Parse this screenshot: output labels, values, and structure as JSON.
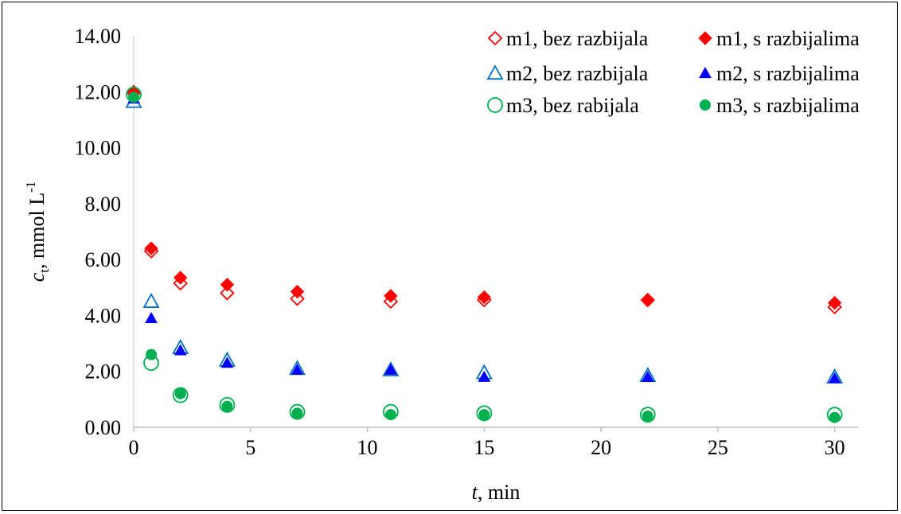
{
  "chart_data": {
    "type": "scatter",
    "title": "",
    "xlabel": {
      "italic": "t",
      "rest": ", min"
    },
    "ylabel": {
      "italic": "c",
      "sub": "t",
      "rest": ", mmol L",
      "sup": "-1"
    },
    "xlim": [
      0,
      31
    ],
    "ylim": [
      0,
      14
    ],
    "xticks": [
      "0",
      "5",
      "10",
      "15",
      "20",
      "25",
      "30"
    ],
    "yticks": [
      "0.00",
      "2.00",
      "4.00",
      "6.00",
      "8.00",
      "10.00",
      "12.00",
      "14.00"
    ],
    "grid": false,
    "legend_position": "top-right",
    "series": [
      {
        "name": "m1, bez razbijala",
        "marker": "diamond-open",
        "color": "#ff0000",
        "x": [
          0,
          0.75,
          2,
          4,
          7,
          11,
          15,
          22,
          30
        ],
        "y": [
          11.95,
          6.3,
          5.15,
          4.8,
          4.6,
          4.5,
          4.55,
          4.55,
          4.3
        ]
      },
      {
        "name": "m1, s razbijalima",
        "marker": "diamond-filled",
        "color": "#ff0000",
        "x": [
          0,
          0.75,
          2,
          4,
          7,
          11,
          15,
          22,
          30
        ],
        "y": [
          12.0,
          6.4,
          5.35,
          5.1,
          4.85,
          4.7,
          4.65,
          4.55,
          4.45
        ]
      },
      {
        "name": "m2, bez razbijala",
        "marker": "triangle-open",
        "color": "#0070c0",
        "x": [
          0,
          0.75,
          2,
          4,
          7,
          11,
          15,
          22,
          30
        ],
        "y": [
          11.65,
          4.5,
          2.85,
          2.4,
          2.1,
          2.05,
          1.95,
          1.85,
          1.8
        ]
      },
      {
        "name": "m2, s razbijalima",
        "marker": "triangle-filled",
        "color": "#0000ff",
        "x": [
          0,
          0.75,
          2,
          4,
          7,
          11,
          15,
          22,
          30
        ],
        "y": [
          11.75,
          3.9,
          2.75,
          2.3,
          2.05,
          2.05,
          1.8,
          1.8,
          1.75
        ]
      },
      {
        "name": "m3, bez rabijala",
        "marker": "circle-open",
        "color": "#00b050",
        "x": [
          0,
          0.75,
          2,
          4,
          7,
          11,
          15,
          22,
          30
        ],
        "y": [
          11.9,
          2.3,
          1.15,
          0.8,
          0.55,
          0.55,
          0.5,
          0.45,
          0.45
        ]
      },
      {
        "name": "m3, s razbijalima",
        "marker": "circle-filled",
        "color": "#00b050",
        "x": [
          0,
          0.75,
          2,
          4,
          7,
          11,
          15,
          22,
          30
        ],
        "y": [
          11.8,
          2.6,
          1.2,
          0.75,
          0.5,
          0.45,
          0.45,
          0.4,
          0.35
        ]
      }
    ]
  }
}
